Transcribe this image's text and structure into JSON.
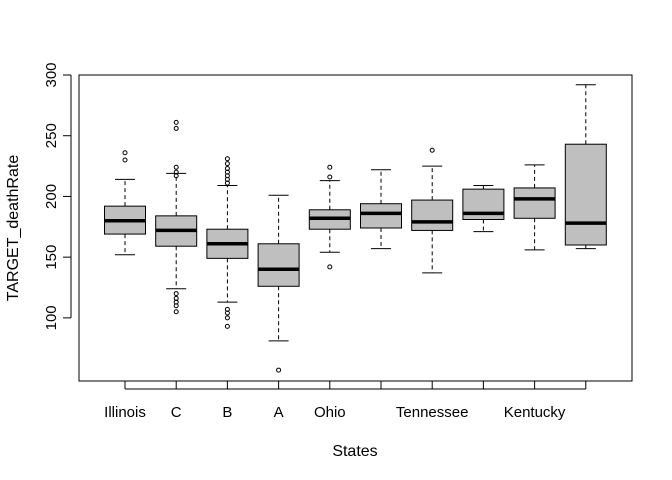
{
  "chart_data": {
    "type": "boxplot",
    "title": "",
    "xlabel": "States",
    "ylabel": "TARGET_deathRate",
    "ylim": [
      48,
      300
    ],
    "y_ticks": [
      100,
      150,
      200,
      250,
      300
    ],
    "colors": {
      "box_fill": "#bfbfbf",
      "stroke": "#000000"
    },
    "groups": [
      {
        "label": "Illinois",
        "q1": 169,
        "median": 180,
        "q3": 192,
        "whisker_low": 152,
        "whisker_high": 214,
        "outliers": [
          230,
          236
        ]
      },
      {
        "label": "C",
        "q1": 159,
        "median": 172,
        "q3": 184,
        "whisker_low": 124,
        "whisker_high": 219,
        "outliers": [
          105,
          110,
          113,
          116,
          120,
          217,
          220,
          224,
          256,
          261
        ]
      },
      {
        "label": "B",
        "q1": 149,
        "median": 161,
        "q3": 173,
        "whisker_low": 113,
        "whisker_high": 209,
        "outliers": [
          93,
          100,
          104,
          107,
          211,
          214,
          217,
          220,
          223,
          227,
          231
        ]
      },
      {
        "label": "A",
        "q1": 126,
        "median": 140,
        "q3": 161,
        "whisker_low": 81,
        "whisker_high": 201,
        "outliers": [
          57
        ]
      },
      {
        "label": "Ohio",
        "q1": 173,
        "median": 182,
        "q3": 189,
        "whisker_low": 154,
        "whisker_high": 213,
        "outliers": [
          142,
          216,
          224
        ]
      },
      {
        "label": "",
        "q1": 174,
        "median": 186,
        "q3": 194,
        "whisker_low": 157,
        "whisker_high": 222,
        "outliers": []
      },
      {
        "label": "Tennessee",
        "q1": 172,
        "median": 179,
        "q3": 197,
        "whisker_low": 137,
        "whisker_high": 225,
        "outliers": [
          238
        ]
      },
      {
        "label": "",
        "q1": 181,
        "median": 186,
        "q3": 206,
        "whisker_low": 171,
        "whisker_high": 209,
        "outliers": []
      },
      {
        "label": "Kentucky",
        "q1": 182,
        "median": 198,
        "q3": 207,
        "whisker_low": 156,
        "whisker_high": 226,
        "outliers": []
      },
      {
        "label": "",
        "q1": 160,
        "median": 178,
        "q3": 243,
        "whisker_low": 157,
        "whisker_high": 292,
        "outliers": []
      }
    ]
  }
}
